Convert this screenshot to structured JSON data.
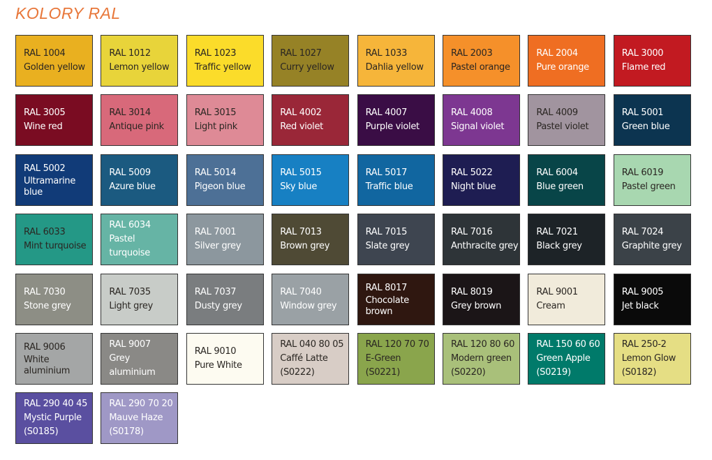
{
  "title": "KOLORY RAL",
  "swatches": [
    {
      "code": "RAL 1004",
      "name": "Golden yellow",
      "color": "#e9b020",
      "text": "dark"
    },
    {
      "code": "RAL 1012",
      "name": "Lemon yellow",
      "color": "#e8d43a",
      "text": "dark"
    },
    {
      "code": "RAL 1023",
      "name": "Traffic yellow",
      "color": "#fbdc2a",
      "text": "dark"
    },
    {
      "code": "RAL 1027",
      "name": "Curry yellow",
      "color": "#968226",
      "text": "dark"
    },
    {
      "code": "RAL 1033",
      "name": "Dahlia yellow",
      "color": "#f6b53a",
      "text": "dark"
    },
    {
      "code": "RAL 2003",
      "name": "Pastel orange",
      "color": "#f5902a",
      "text": "dark"
    },
    {
      "code": "RAL 2004",
      "name": "Pure orange",
      "color": "#ef6e22",
      "text": "light"
    },
    {
      "code": "RAL 3000",
      "name": "Flame red",
      "color": "#c21a21",
      "text": "light"
    },
    {
      "code": "RAL 3005",
      "name": "Wine red",
      "color": "#7a0c22",
      "text": "light"
    },
    {
      "code": "RAL 3014",
      "name": "Antique pink",
      "color": "#d8697a",
      "text": "dark"
    },
    {
      "code": "RAL 3015",
      "name": "Light pink",
      "color": "#de8a96",
      "text": "dark"
    },
    {
      "code": "RAL 4002",
      "name": "Red violet",
      "color": "#9a2738",
      "text": "light"
    },
    {
      "code": "RAL 4007",
      "name": "Purple violet",
      "color": "#3a0d45",
      "text": "light"
    },
    {
      "code": "RAL 4008",
      "name": "Signal violet",
      "color": "#7d3791",
      "text": "light"
    },
    {
      "code": "RAL 4009",
      "name": "Pastel violet",
      "color": "#a1949f",
      "text": "dark"
    },
    {
      "code": "RAL 5001",
      "name": "Green blue",
      "color": "#0c3450",
      "text": "light"
    },
    {
      "code": "RAL 5002",
      "name": "Ultramarine blue",
      "color": "#113b78",
      "text": "light",
      "wrap": true
    },
    {
      "code": "RAL 5009",
      "name": "Azure blue",
      "color": "#1b5a80",
      "text": "light"
    },
    {
      "code": "RAL 5014",
      "name": "Pigeon blue",
      "color": "#4d7096",
      "text": "light"
    },
    {
      "code": "RAL 5015",
      "name": "Sky blue",
      "color": "#1780c3",
      "text": "light"
    },
    {
      "code": "RAL 5017",
      "name": "Traffic blue",
      "color": "#1166a0",
      "text": "light"
    },
    {
      "code": "RAL 5022",
      "name": "Night blue",
      "color": "#1e1d52",
      "text": "light"
    },
    {
      "code": "RAL 6004",
      "name": "Blue green",
      "color": "#084548",
      "text": "light"
    },
    {
      "code": "RAL 6019",
      "name": "Pastel green",
      "color": "#a8d7b0",
      "text": "dark"
    },
    {
      "code": "RAL 6033",
      "name": "Mint turquoise",
      "color": "#249886",
      "text": "dark"
    },
    {
      "code": "RAL 6034",
      "name": "Pastel turquoise",
      "color": "#66b4a5",
      "text": "light"
    },
    {
      "code": "RAL 7001",
      "name": "Silver grey",
      "color": "#8c979e",
      "text": "light"
    },
    {
      "code": "RAL 7013",
      "name": "Brown grey",
      "color": "#4f4a35",
      "text": "light"
    },
    {
      "code": "RAL 7015",
      "name": "Slate grey",
      "color": "#3e4550",
      "text": "light"
    },
    {
      "code": "RAL 7016",
      "name": "Anthracite grey",
      "color": "#2e3438",
      "text": "light"
    },
    {
      "code": "RAL 7021",
      "name": "Black grey",
      "color": "#1d2327",
      "text": "light"
    },
    {
      "code": "RAL 7024",
      "name": "Graphite grey",
      "color": "#3b4248",
      "text": "light"
    },
    {
      "code": "RAL 7030",
      "name": "Stone grey",
      "color": "#8d8e85",
      "text": "light"
    },
    {
      "code": "RAL 7035",
      "name": "Light grey",
      "color": "#c8ccc8",
      "text": "dark"
    },
    {
      "code": "RAL 7037",
      "name": "Dusty grey",
      "color": "#7a7d7f",
      "text": "light"
    },
    {
      "code": "RAL 7040",
      "name": "Window grey",
      "color": "#9aa1a5",
      "text": "light"
    },
    {
      "code": "RAL 8017",
      "name": "Chocolate brown",
      "color": "#2f1710",
      "text": "light",
      "wrap": true
    },
    {
      "code": "RAL 8019",
      "name": "Grey brown",
      "color": "#1b1517",
      "text": "light"
    },
    {
      "code": "RAL 9001",
      "name": "Cream",
      "color": "#f1ebdb",
      "text": "dark"
    },
    {
      "code": "RAL 9005",
      "name": "Jet black",
      "color": "#0a0a0a",
      "text": "light"
    },
    {
      "code": "RAL 9006",
      "name": "White aluminium",
      "color": "#a4a6a6",
      "text": "dark",
      "wrap": true
    },
    {
      "code": "RAL 9007",
      "name": "Grey aluminium",
      "color": "#8a8986",
      "text": "light"
    },
    {
      "code": "RAL 9010",
      "name": "Pure White",
      "color": "#fdfbf1",
      "text": "dark"
    },
    {
      "code": "RAL 040 80 05",
      "name": "Caffé Latte",
      "ref": "(S0222)",
      "color": "#d8cdc6",
      "text": "dark"
    },
    {
      "code": "RAL 120 70 70",
      "name": "E-Green",
      "ref": "(S0221)",
      "color": "#8aa54c",
      "text": "dark"
    },
    {
      "code": "RAL 120 80 60",
      "name": "Modern green",
      "ref": "(S0220)",
      "color": "#a9c07a",
      "text": "dark"
    },
    {
      "code": "RAL 150 60 60",
      "name": "Green Apple",
      "ref": "(S0219)",
      "color": "#007a6a",
      "text": "light"
    },
    {
      "code": "RAL 250-2",
      "name": "Lemon Glow",
      "ref": "(S0182)",
      "color": "#e5de84",
      "text": "dark"
    },
    {
      "code": "RAL 290 40 45",
      "name": "Mystic Purple",
      "ref": "(S0185)",
      "color": "#5a4fa0",
      "text": "light"
    },
    {
      "code": "RAL 290 70 20",
      "name": "Mauve Haze",
      "ref": "(S0178)",
      "color": "#9f98c6",
      "text": "light"
    }
  ]
}
